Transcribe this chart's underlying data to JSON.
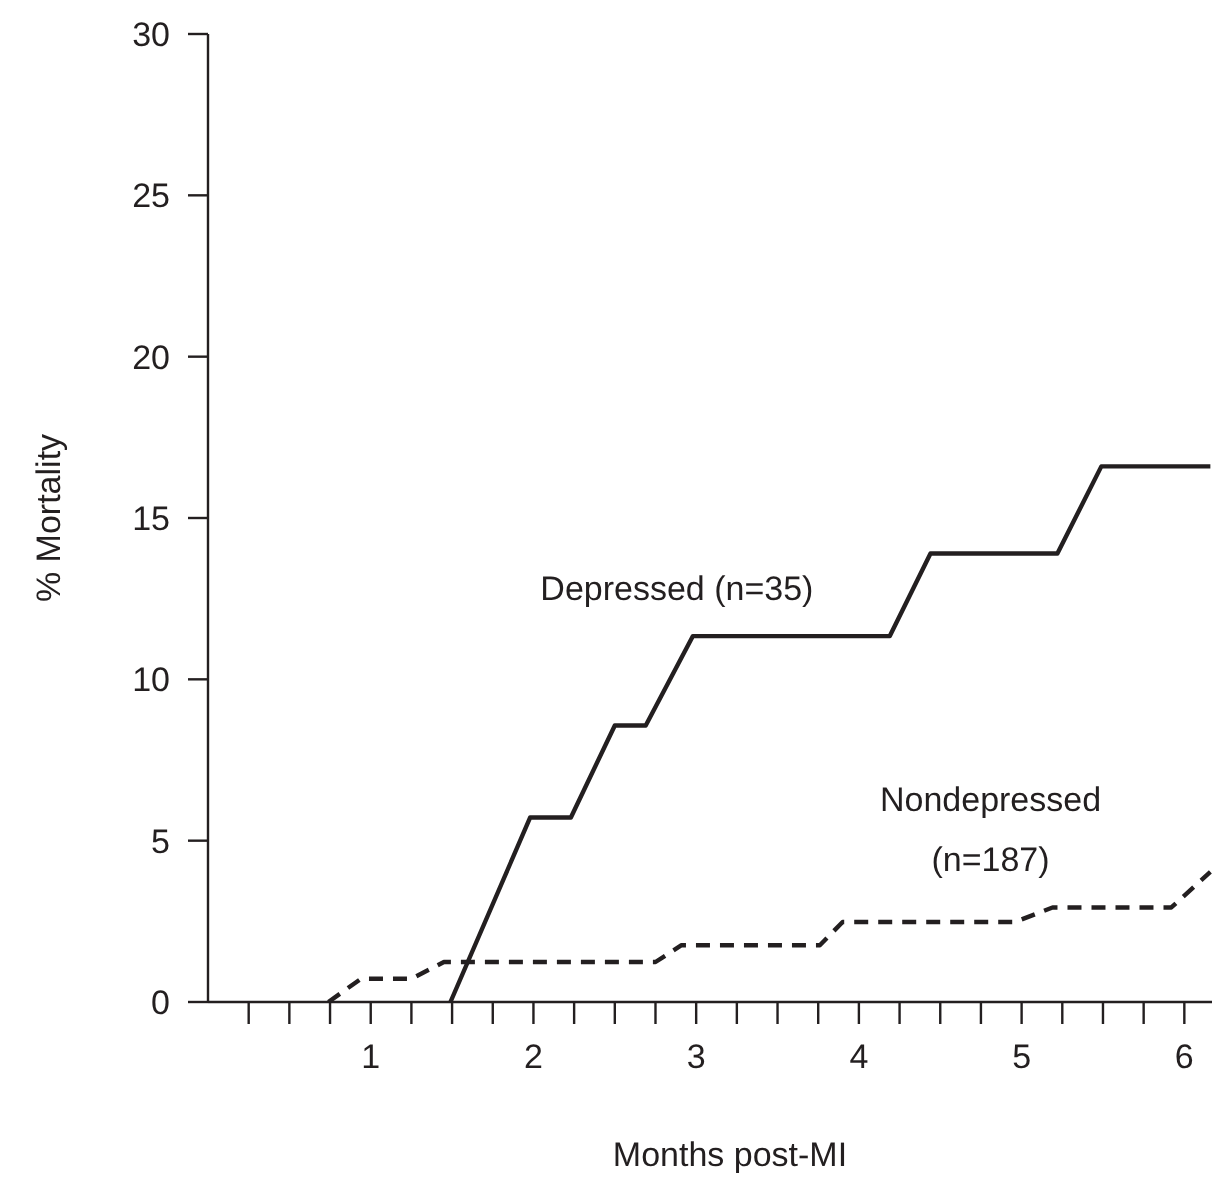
{
  "chart_data": {
    "type": "line",
    "xlabel": "Months post-MI",
    "ylabel": "% Mortality",
    "xlim": [
      0,
      6.17
    ],
    "ylim": [
      0,
      30
    ],
    "xticks": [
      {
        "value": 0.25,
        "label": null
      },
      {
        "value": 0.5,
        "label": null
      },
      {
        "value": 0.75,
        "label": null
      },
      1,
      {
        "value": 1.25,
        "label": null
      },
      {
        "value": 1.5,
        "label": null
      },
      {
        "value": 1.75,
        "label": null
      },
      2,
      {
        "value": 2.25,
        "label": null
      },
      {
        "value": 2.5,
        "label": null
      },
      {
        "value": 2.75,
        "label": null
      },
      3,
      {
        "value": 3.25,
        "label": null
      },
      {
        "value": 3.5,
        "label": null
      },
      {
        "value": 3.75,
        "label": null
      },
      4,
      {
        "value": 4.25,
        "label": null
      },
      {
        "value": 4.5,
        "label": null
      },
      {
        "value": 4.75,
        "label": null
      },
      5,
      {
        "value": 5.25,
        "label": null
      },
      {
        "value": 5.5,
        "label": null
      },
      {
        "value": 5.75,
        "label": null
      },
      6
    ],
    "yticks": [
      0,
      5,
      10,
      15,
      20,
      25,
      30
    ],
    "marker": "none",
    "series": [
      {
        "name": "Depressed (n=35)",
        "color": "#231f20",
        "line_style": "solid",
        "x": [
          1.49,
          1.98,
          2.23,
          2.5,
          2.69,
          2.98,
          4.19,
          4.44,
          5.22,
          5.49,
          6.16
        ],
        "values": [
          0,
          5.72,
          5.72,
          8.57,
          8.57,
          11.34,
          11.34,
          13.9,
          13.9,
          16.6,
          16.6
        ]
      },
      {
        "name": "Nondepressed (n=187)",
        "color": "#231f20",
        "line_style": "dashed",
        "x": [
          0.74,
          0.94,
          1.25,
          1.45,
          2.75,
          2.91,
          3.76,
          3.9,
          4.96,
          5.19,
          5.92,
          6.16
        ],
        "values": [
          0,
          0.72,
          0.72,
          1.24,
          1.24,
          1.76,
          1.76,
          2.48,
          2.48,
          2.93,
          2.93,
          4.03
        ]
      }
    ]
  }
}
